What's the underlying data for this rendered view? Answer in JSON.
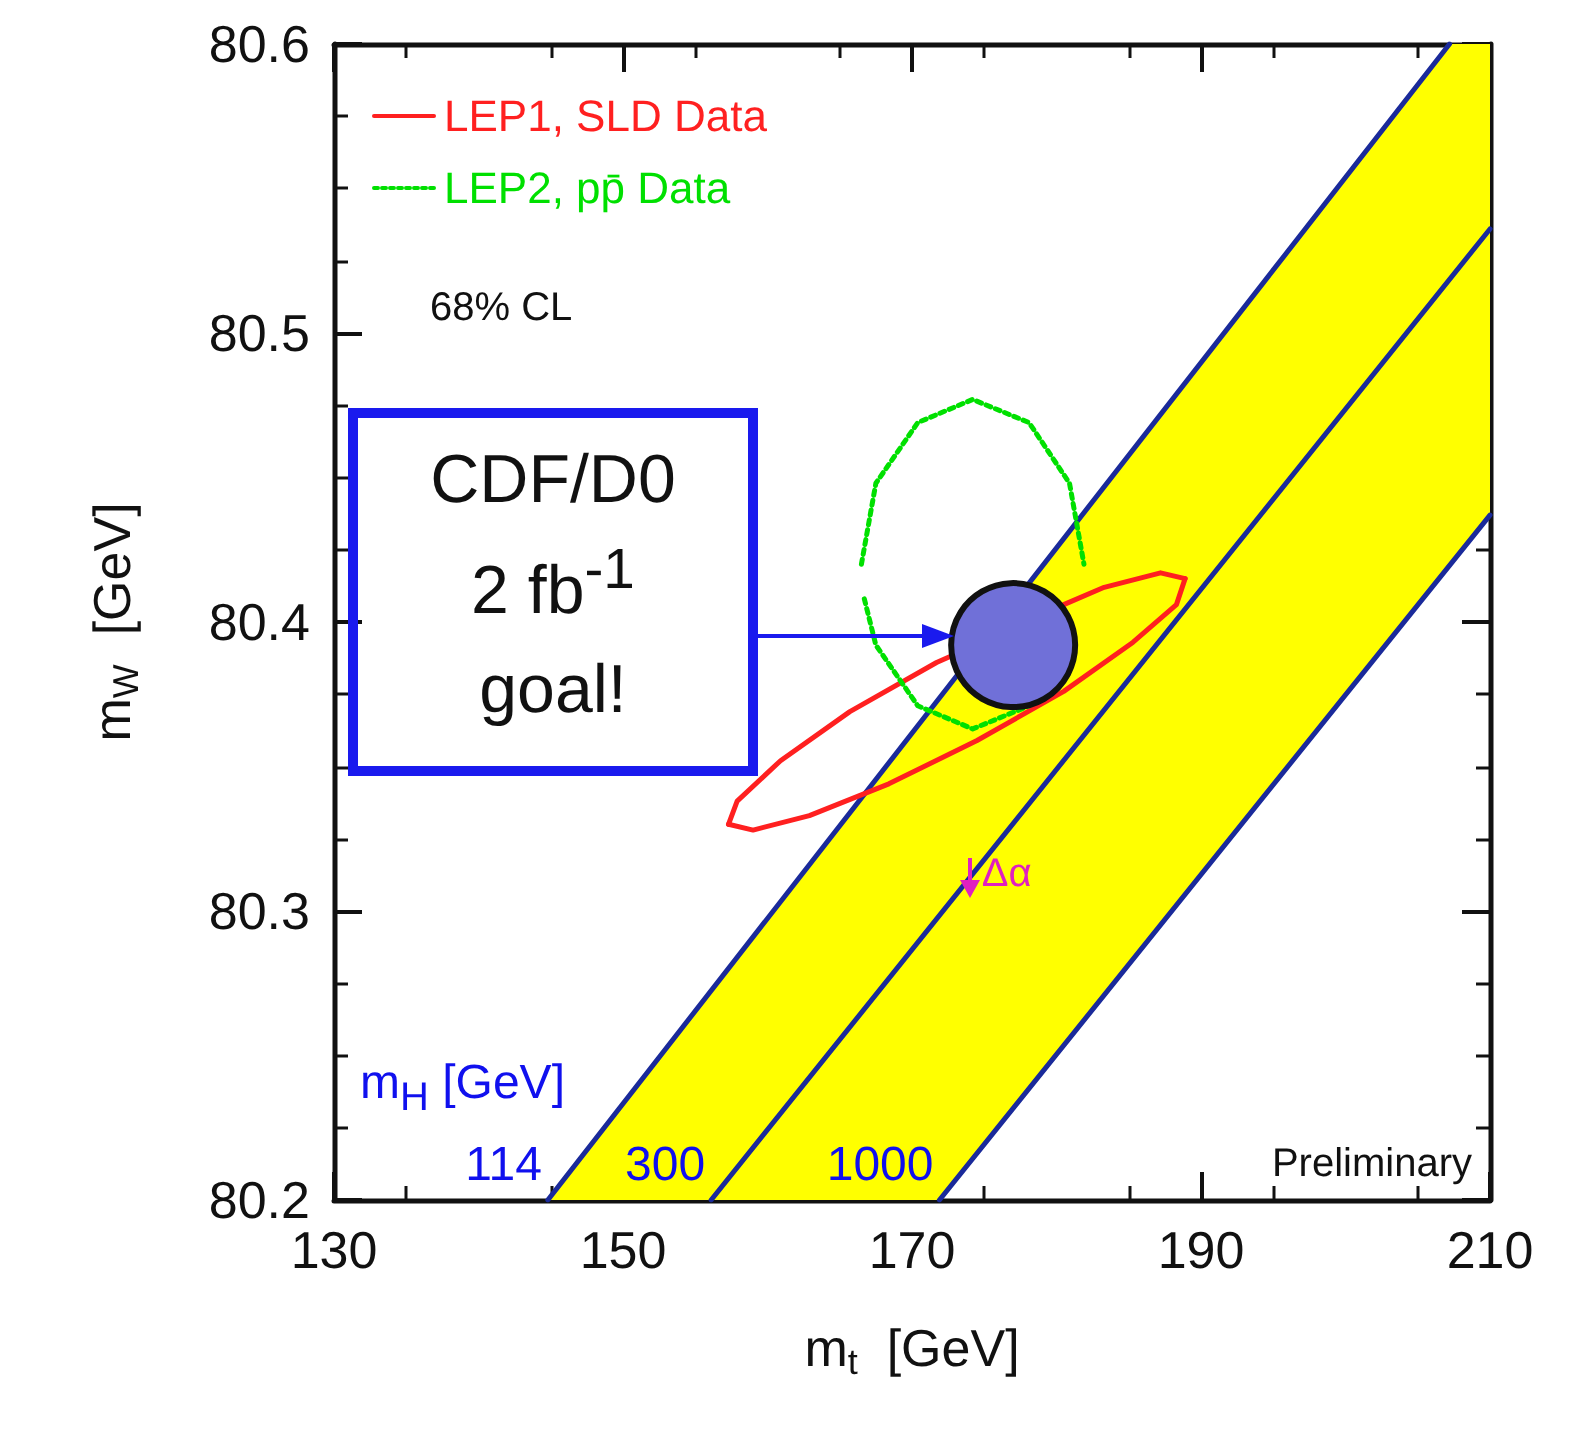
{
  "chart_data": {
    "type": "line",
    "xlabel": "m$_{t}$  [GeV]",
    "ylabel": "m$_{W}$  [GeV]",
    "xlim": [
      130,
      210
    ],
    "xticks": [
      130,
      150,
      170,
      190,
      210
    ],
    "ylim": [
      80.2,
      80.6
    ],
    "yticks": [
      80.2,
      80.3,
      80.4,
      80.5,
      80.6
    ],
    "grid": false,
    "legend": "top left",
    "marker": "none",
    "series": [
      {
        "type": "area",
        "color": "#ffff00",
        "x": [
          144.8,
          171.9,
          207.2,
          210
        ],
        "values": [
          null,
          null,
          null,
          null
        ],
        "lower": [
          80.2,
          80.2,
          80.42,
          80.437
        ],
        "upper": [
          80.2,
          80.374,
          80.6,
          80.6
        ]
      },
      {
        "color": "#1a2a9a",
        "x": [
          144.8,
          207.2
        ],
        "values": [
          80.2,
          80.6
        ]
      },
      {
        "color": "#1a2a9a",
        "x": [
          156.1,
          210
        ],
        "values": [
          80.2,
          80.536
        ]
      },
      {
        "color": "#1a2a9a",
        "x": [
          171.9,
          210
        ],
        "values": [
          80.2,
          80.437
        ]
      },
      {
        "name": "LEP1, SLD Data",
        "color": "#ff2020",
        "line_style": "solid",
        "x": [
          157.3,
          157.9,
          160.9,
          165.7,
          171.7,
          172.6,
          177.9,
          180.5,
          183.3,
          187.2,
          188.9
        ],
        "values": [
          80.33,
          80.338,
          80.352,
          80.369,
          80.386,
          80.388,
          null,
          80.406,
          80.412,
          80.417,
          80.415
        ]
      },
      {
        "color": "#ff2020",
        "line_style": "solid",
        "x": [
          157.3,
          159.0,
          162.9,
          168.4,
          174.5,
          180.5,
          185.3,
          188.3,
          188.9
        ],
        "values": [
          80.33,
          80.328,
          80.333,
          80.344,
          80.359,
          80.376,
          80.393,
          80.406,
          80.415
        ]
      },
      {
        "name": "LEP2, pp̄ Data",
        "color": "#00e000",
        "line_style": "dotted",
        "x": [
          166.5,
          167.5,
          170.4,
          174.2,
          178.1,
          180.9,
          181.9
        ],
        "values": [
          80.42,
          80.448,
          80.469,
          80.477,
          80.469,
          80.448,
          80.42
        ]
      },
      {
        "color": "#00e000",
        "line_style": "dotted",
        "x": [
          166.7,
          167.5,
          170.4,
          174.2,
          178.1
        ],
        "values": [
          80.408,
          80.392,
          80.371,
          80.363,
          80.371
        ]
      },
      {
        "type": "scatter",
        "marker": "circle",
        "color": "#7070d8",
        "x": [
          177.0
        ],
        "values": [
          80.392
        ]
      }
    ],
    "annotations": [
      "68% CL",
      "CDF/D0\n2 fb$^{-1}$\ngoal!",
      {
        "text": "Δα",
        "x": 174.0,
        "y": 80.31
      },
      "m$_{H}$ [GeV]",
      {
        "text": "114",
        "x": 144.8,
        "y": 80.2
      },
      {
        "text": "300",
        "x": 156.1,
        "y": 80.2
      },
      {
        "text": "1000",
        "x": 171.9,
        "y": 80.2
      },
      "Preliminary"
    ]
  }
}
